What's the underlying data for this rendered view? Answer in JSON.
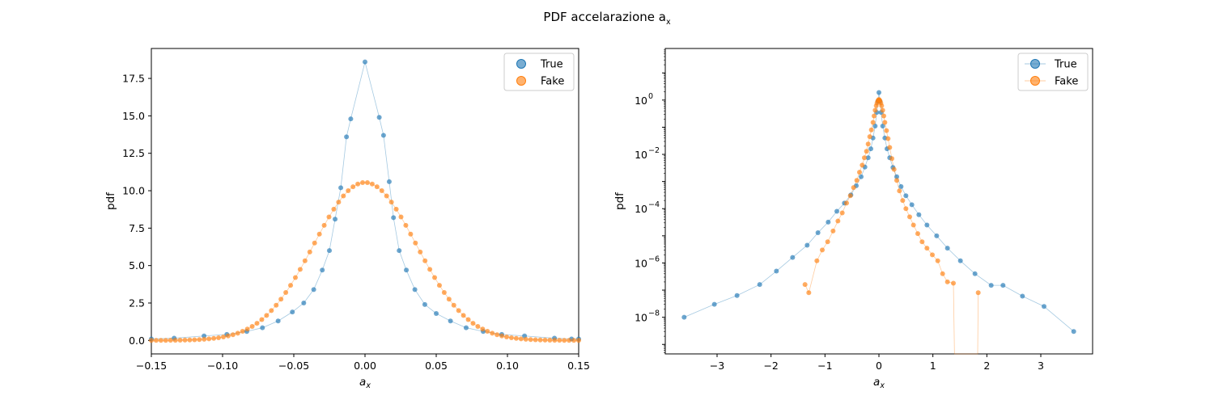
{
  "figure": {
    "suptitle": "PDF accelarazione a",
    "suptitle_sub": "x"
  },
  "colors": {
    "true": "#1f77b4",
    "fake": "#ff7f0e",
    "axes": "#000000",
    "legend_border": "#cccccc"
  },
  "chart_data": [
    {
      "type": "line",
      "xscale": "linear",
      "yscale": "linear",
      "xlabel": "a",
      "xlabel_sub": "x",
      "ylabel": "pdf",
      "xlim": [
        -0.15,
        0.15
      ],
      "ylim": [
        -0.9,
        19.5
      ],
      "xticks": [
        -0.15,
        -0.1,
        -0.05,
        0.0,
        0.05,
        0.1,
        0.15
      ],
      "xtick_labels": [
        "−0.15",
        "−0.10",
        "−0.05",
        "0.00",
        "0.05",
        "0.10",
        "0.15"
      ],
      "yticks": [
        0.0,
        2.5,
        5.0,
        7.5,
        10.0,
        12.5,
        15.0,
        17.5
      ],
      "ytick_labels": [
        "0.0",
        "2.5",
        "5.0",
        "7.5",
        "10.0",
        "12.5",
        "15.0",
        "17.5"
      ],
      "legend": "top-right",
      "series": [
        {
          "name": "True",
          "color_key": "true",
          "x": [
            -0.15,
            -0.134,
            -0.113,
            -0.097,
            -0.083,
            -0.072,
            -0.061,
            -0.051,
            -0.043,
            -0.036,
            -0.03,
            -0.025,
            -0.021,
            -0.017,
            -0.013,
            -0.01,
            0.0,
            0.01,
            0.013,
            0.017,
            0.02,
            0.024,
            0.029,
            0.035,
            0.042,
            0.05,
            0.06,
            0.071,
            0.083,
            0.096,
            0.112,
            0.133,
            0.145,
            0.15
          ],
          "y": [
            0.1,
            0.15,
            0.3,
            0.4,
            0.6,
            0.85,
            1.3,
            1.9,
            2.5,
            3.4,
            4.7,
            6.0,
            8.1,
            10.2,
            13.6,
            14.8,
            18.6,
            14.9,
            13.7,
            10.6,
            8.2,
            6.0,
            4.7,
            3.4,
            2.4,
            1.8,
            1.3,
            0.85,
            0.6,
            0.4,
            0.3,
            0.15,
            0.1,
            0.1
          ]
        },
        {
          "name": "Fake",
          "color_key": "fake",
          "sigma": 0.036,
          "peak": 10.55,
          "xmin": -0.15,
          "xmax": 0.15,
          "points": 90
        }
      ]
    },
    {
      "type": "line",
      "xscale": "linear",
      "yscale": "log",
      "xlabel": "a",
      "xlabel_sub": "x",
      "ylabel": "pdf",
      "xlim": [
        -3.96,
        3.96
      ],
      "ylim_log10": [
        -9.35,
        1.9
      ],
      "xticks": [
        -3,
        -2,
        -1,
        0,
        1,
        2,
        3
      ],
      "xtick_labels": [
        "−3",
        "−2",
        "−1",
        "0",
        "1",
        "2",
        "3"
      ],
      "ytick_exponents": [
        0,
        -2,
        -4,
        -6,
        -8
      ],
      "ytick_base": "10",
      "ytick_labels": [
        "10",
        "10",
        "10",
        "10",
        "10"
      ],
      "ytick_exp_labels": [
        "0",
        "−2",
        "−4",
        "−6",
        "−8"
      ],
      "legend": "top-right",
      "series": [
        {
          "name": "True",
          "color_key": "true",
          "x": [
            -3.61,
            -3.05,
            -2.63,
            -2.21,
            -1.9,
            -1.6,
            -1.33,
            -1.13,
            -0.94,
            -0.78,
            -0.64,
            -0.52,
            -0.42,
            -0.33,
            -0.26,
            -0.2,
            -0.15,
            -0.11,
            -0.07,
            -0.04,
            -0.02,
            0.0,
            0.02,
            0.04,
            0.07,
            0.11,
            0.15,
            0.2,
            0.26,
            0.33,
            0.41,
            0.5,
            0.61,
            0.74,
            0.89,
            1.07,
            1.27,
            1.51,
            1.78,
            2.08,
            2.3,
            2.66,
            3.06,
            3.61
          ],
          "y": [
            1e-08,
            3e-08,
            6.3e-08,
            1.6e-07,
            5e-07,
            1.6e-06,
            4.5e-06,
            1.3e-05,
            3.2e-05,
            8e-05,
            0.00016,
            0.00032,
            0.0007,
            0.0015,
            0.0034,
            0.0075,
            0.016,
            0.04,
            0.11,
            0.35,
            0.9,
            1.9,
            0.9,
            0.35,
            0.11,
            0.04,
            0.016,
            0.0075,
            0.0033,
            0.0015,
            0.00065,
            0.0003,
            0.00014,
            6e-05,
            2.5e-05,
            1e-05,
            3.5e-06,
            1.2e-06,
            4e-07,
            1.5e-07,
            1.5e-07,
            6e-08,
            2.5e-08,
            3e-09
          ]
        },
        {
          "name": "Fake",
          "color_key": "fake",
          "x": [
            -1.37,
            -1.3,
            -1.15,
            -1.05,
            -0.95,
            -0.85,
            -0.76,
            -0.68,
            -0.6,
            -0.53,
            -0.47,
            -0.41,
            -0.36,
            -0.31,
            -0.27,
            -0.23,
            -0.2,
            -0.17,
            -0.14,
            -0.11,
            -0.09,
            -0.07,
            -0.05,
            -0.035,
            -0.02,
            -0.01,
            0.0,
            0.01,
            0.02,
            0.035,
            0.05,
            0.07,
            0.09,
            0.11,
            0.14,
            0.17,
            0.2,
            0.24,
            0.28,
            0.33,
            0.38,
            0.44,
            0.5,
            0.57,
            0.64,
            0.72,
            0.8,
            0.89,
            0.99,
            1.09,
            1.18,
            1.27,
            1.38,
            1.4,
            1.83,
            1.84
          ],
          "y": [
            1.6e-07,
            8e-08,
            1.2e-06,
            3e-06,
            6e-06,
            1.5e-05,
            3.5e-05,
            7e-05,
            0.00016,
            0.0003,
            0.0006,
            0.0011,
            0.0022,
            0.004,
            0.0075,
            0.013,
            0.024,
            0.045,
            0.08,
            0.15,
            0.26,
            0.42,
            0.62,
            0.78,
            0.92,
            1.0,
            1.05,
            1.0,
            0.92,
            0.78,
            0.62,
            0.42,
            0.26,
            0.15,
            0.075,
            0.038,
            0.018,
            0.007,
            0.0028,
            0.0011,
            0.00045,
            0.0002,
            0.0001,
            5e-05,
            2.5e-05,
            1.2e-05,
            6e-06,
            3.5e-06,
            2e-06,
            1.2e-06,
            4e-07,
            2e-07,
            1.8e-07,
            1e-30,
            1e-30,
            8e-08
          ]
        }
      ]
    }
  ]
}
